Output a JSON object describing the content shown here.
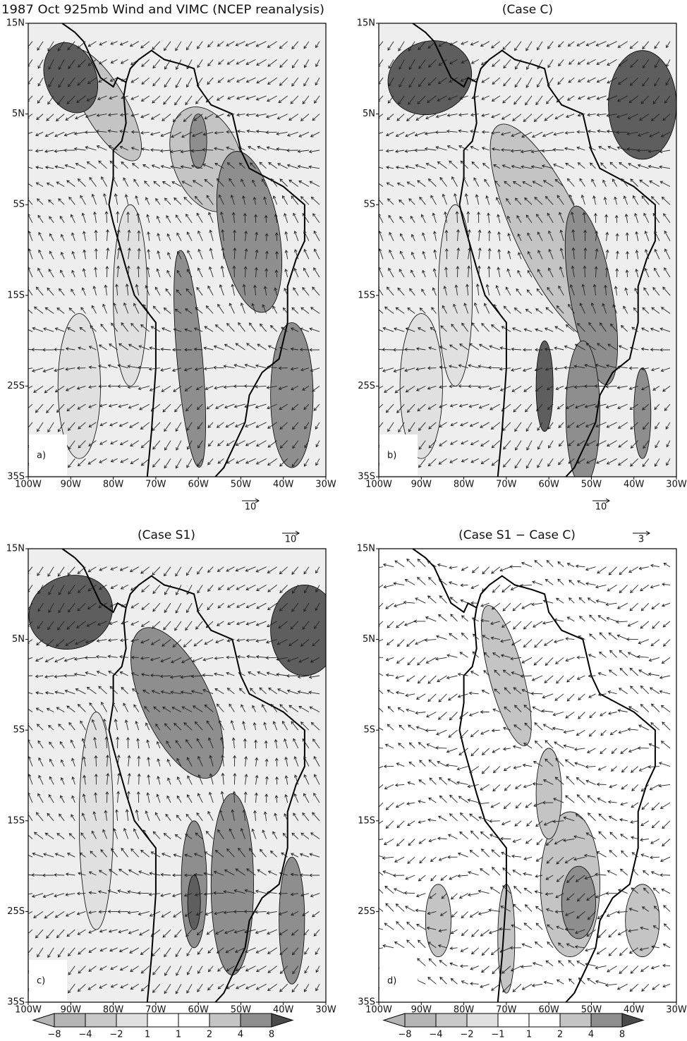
{
  "panels": [
    {
      "title": "1987 Oct 925mb Wind and VIMC (NCEP reanalysis)",
      "label": "a)",
      "ref_vector": "10"
    },
    {
      "title": "(Case C)",
      "label": "b)",
      "ref_vector": "10"
    },
    {
      "title": "(Case S1)",
      "label": "c)",
      "ref_vector": "10"
    },
    {
      "title": "(Case S1 − Case C)",
      "label": "d)",
      "ref_vector": "3"
    }
  ],
  "lat_labels": [
    "15N",
    "5N",
    "5S",
    "15S",
    "25S",
    "35S"
  ],
  "lon_labels": [
    "100W",
    "90W",
    "80W",
    "70W",
    "60W",
    "50W",
    "40W",
    "30W"
  ],
  "colorbars": [
    [
      "−8",
      "−4",
      "−2",
      "1",
      "1",
      "2",
      "4",
      "8"
    ],
    [
      "−8",
      "−4",
      "−2",
      "−1",
      "1",
      "2",
      "4",
      "8"
    ]
  ]
}
